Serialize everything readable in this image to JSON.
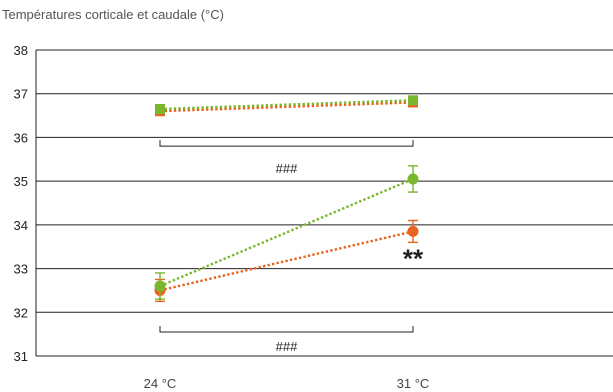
{
  "chart_data": {
    "type": "line",
    "title": "Températures corticale et caudale (°C)",
    "xlabel": "",
    "ylabel": "",
    "categories": [
      "24 °C",
      "31 °C"
    ],
    "ylim": [
      31,
      38
    ],
    "yticks": [
      31,
      32,
      33,
      34,
      35,
      36,
      37,
      38
    ],
    "grid": true,
    "legend": "none",
    "series": [
      {
        "marker": "square",
        "color": "#e8641e",
        "values": [
          36.6,
          36.8
        ],
        "errors": [
          0.05,
          0.05
        ]
      },
      {
        "marker": "square",
        "color": "#7ab62e",
        "values": [
          36.65,
          36.85
        ],
        "errors": [
          0.05,
          0.05
        ]
      },
      {
        "marker": "circle",
        "color": "#e8641e",
        "values": [
          32.5,
          33.85
        ],
        "errors": [
          0.25,
          0.25
        ]
      },
      {
        "marker": "circle",
        "color": "#7ab62e",
        "values": [
          32.6,
          35.05
        ],
        "errors": [
          0.3,
          0.3
        ]
      }
    ],
    "annotations": {
      "bracket_top": {
        "label": "###",
        "y": 35.8
      },
      "bracket_bottom": {
        "label": "###",
        "y": 31.55
      },
      "significance": {
        "label": "**"
      }
    }
  }
}
